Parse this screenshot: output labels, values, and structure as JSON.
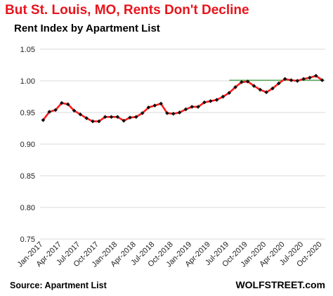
{
  "title": "But St. Louis, MO, Rents Don't Decline",
  "subtitle": "Rent Index by Apartment List",
  "source": "Source: Apartment List",
  "credit": "WOLFSTREET.com",
  "colors": {
    "title": "#e8141b",
    "line": "#ff1a1a",
    "marker": "#111111",
    "reference": "#3a9c3a",
    "grid": "#d9d9d9"
  },
  "chart_data": {
    "type": "line",
    "title": "Rent Index by Apartment List",
    "xlabel": "",
    "ylabel": "",
    "ylim": [
      0.75,
      1.05
    ],
    "yticks": [
      "1.05",
      "1.00",
      "0.95",
      "0.90",
      "0.85",
      "0.80",
      "0.75"
    ],
    "ytick_values": [
      1.05,
      1.0,
      0.95,
      0.9,
      0.85,
      0.8,
      0.75
    ],
    "xtick_labels": [
      "Jan-2017",
      "Apr-2017",
      "Jul-2017",
      "Oct-2017",
      "Jan-2018",
      "Apr-2018",
      "Jul-2018",
      "Oct-2018",
      "Jan-2019",
      "Apr-2019",
      "Jul-2019",
      "Oct-2019",
      "Jan-2020",
      "Apr-2020",
      "Jul-2020",
      "Oct-2020"
    ],
    "grid": true,
    "legend": "none",
    "x": [
      "Jan-2017",
      "Feb-2017",
      "Mar-2017",
      "Apr-2017",
      "May-2017",
      "Jun-2017",
      "Jul-2017",
      "Aug-2017",
      "Sep-2017",
      "Oct-2017",
      "Nov-2017",
      "Dec-2017",
      "Jan-2018",
      "Feb-2018",
      "Mar-2018",
      "Apr-2018",
      "May-2018",
      "Jun-2018",
      "Jul-2018",
      "Aug-2018",
      "Sep-2018",
      "Oct-2018",
      "Nov-2018",
      "Dec-2018",
      "Jan-2019",
      "Feb-2019",
      "Mar-2019",
      "Apr-2019",
      "May-2019",
      "Jun-2019",
      "Jul-2019",
      "Aug-2019",
      "Sep-2019",
      "Oct-2019",
      "Nov-2019",
      "Dec-2019",
      "Jan-2020",
      "Feb-2020",
      "Mar-2020",
      "Apr-2020",
      "May-2020",
      "Jun-2020",
      "Jul-2020",
      "Aug-2020",
      "Sep-2020",
      "Oct-2020"
    ],
    "series": [
      {
        "values": [
          0.938,
          0.951,
          0.954,
          0.965,
          0.963,
          0.953,
          0.947,
          0.941,
          0.936,
          0.936,
          0.943,
          0.943,
          0.943,
          0.937,
          0.942,
          0.943,
          0.949,
          0.958,
          0.961,
          0.964,
          0.949,
          0.948,
          0.95,
          0.955,
          0.959,
          0.959,
          0.966,
          0.968,
          0.97,
          0.975,
          0.981,
          0.99,
          0.998,
          0.999,
          0.992,
          0.986,
          0.982,
          0.988,
          0.996,
          1.003,
          1.001,
          1.0,
          1.003,
          1.005,
          1.008,
          1.001
        ]
      }
    ],
    "reference_line": {
      "value": 1.001,
      "from": "Jul-2019",
      "to": "Oct-2020"
    }
  }
}
